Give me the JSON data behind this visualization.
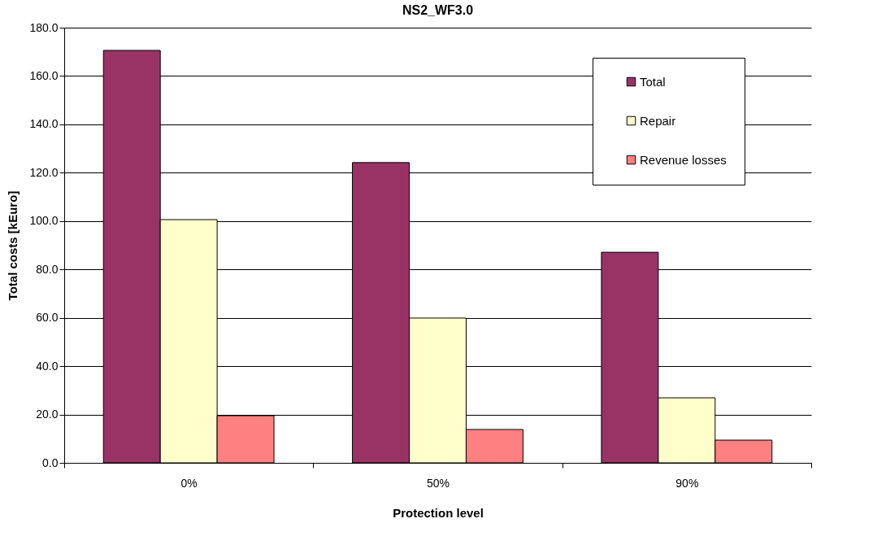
{
  "chart_data": {
    "type": "bar",
    "title": "NS2_WF3.0",
    "xlabel": "Protection level",
    "ylabel": "Total costs [kEuro]",
    "categories": [
      "0%",
      "50%",
      "90%"
    ],
    "series": [
      {
        "name": "Total",
        "color": "#993366",
        "values": [
          170.6,
          124.2,
          87.1
        ]
      },
      {
        "name": "Repair",
        "color": "#ffffcc",
        "values": [
          100.6,
          59.9,
          26.9
        ]
      },
      {
        "name": "Revenue losses",
        "color": "#ff8080",
        "values": [
          19.5,
          13.8,
          9.4
        ]
      }
    ],
    "ylim": [
      0,
      180
    ],
    "yticks": [
      {
        "value": 0,
        "label": "0.0"
      },
      {
        "value": 20,
        "label": "20.0"
      },
      {
        "value": 40,
        "label": "40.0"
      },
      {
        "value": 60,
        "label": "60.0"
      },
      {
        "value": 80,
        "label": "80.0"
      },
      {
        "value": 100,
        "label": "100.0"
      },
      {
        "value": 120,
        "label": "120.0"
      },
      {
        "value": 140,
        "label": "140.0"
      },
      {
        "value": 160,
        "label": "160.0"
      },
      {
        "value": 180,
        "label": "180.0"
      }
    ],
    "grid": "y",
    "legend": "top right"
  }
}
